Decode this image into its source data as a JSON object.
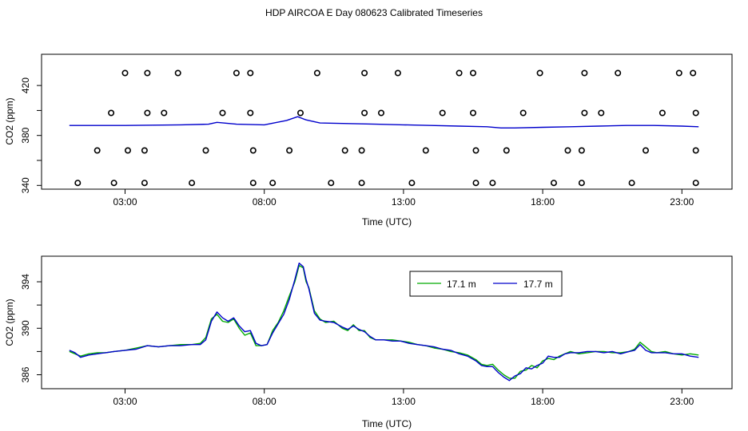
{
  "title": "HDP AIRCOA E  Day 080623  Calibrated Timeseries",
  "colors": {
    "green": "#00aa00",
    "blue": "#0000cc",
    "frame": "#000000"
  },
  "chart_data": [
    {
      "type": "line",
      "xlabel": "Time (UTC)",
      "ylabel": "CO2 (ppm)",
      "xlim": [
        0.0,
        24.8
      ],
      "ylim": [
        337,
        445
      ],
      "x_ticks": [
        {
          "v": 3,
          "label": "03:00"
        },
        {
          "v": 8,
          "label": "08:00"
        },
        {
          "v": 13,
          "label": "13:00"
        },
        {
          "v": 18,
          "label": "18:00"
        },
        {
          "v": 23,
          "label": "23:00"
        }
      ],
      "y_ticks": [
        {
          "v": 340,
          "label": "340"
        },
        {
          "v": 380,
          "label": "380"
        },
        {
          "v": 420,
          "label": "420"
        }
      ],
      "extra_y_ticks": [
        360,
        400
      ],
      "series": [
        {
          "color": "blue",
          "x": [
            1.0,
            3.0,
            5.0,
            6.0,
            6.3,
            7.0,
            8.0,
            8.8,
            9.2,
            9.5,
            10.0,
            11.0,
            12.0,
            13.0,
            14.0,
            15.0,
            16.0,
            16.5,
            17.0,
            18.0,
            19.0,
            20.0,
            21.0,
            22.0,
            23.0,
            23.6
          ],
          "y": [
            388,
            388,
            388.5,
            389,
            390.5,
            389,
            388.5,
            392,
            395,
            392.5,
            390,
            389.5,
            389,
            388.5,
            388,
            387.5,
            387,
            386,
            386,
            386.5,
            387,
            387.5,
            388,
            388,
            387.5,
            387
          ]
        }
      ],
      "points": [
        {
          "x": 1.3,
          "y": 342
        },
        {
          "x": 2.0,
          "y": 368
        },
        {
          "x": 2.5,
          "y": 398
        },
        {
          "x": 3.0,
          "y": 430
        },
        {
          "x": 2.6,
          "y": 342
        },
        {
          "x": 3.1,
          "y": 368
        },
        {
          "x": 3.7,
          "y": 368
        },
        {
          "x": 3.7,
          "y": 342
        },
        {
          "x": 3.8,
          "y": 398
        },
        {
          "x": 3.8,
          "y": 430
        },
        {
          "x": 4.4,
          "y": 398
        },
        {
          "x": 4.9,
          "y": 430
        },
        {
          "x": 5.4,
          "y": 342
        },
        {
          "x": 5.9,
          "y": 368
        },
        {
          "x": 6.5,
          "y": 398
        },
        {
          "x": 7.0,
          "y": 430
        },
        {
          "x": 7.5,
          "y": 430
        },
        {
          "x": 7.5,
          "y": 398
        },
        {
          "x": 7.6,
          "y": 368
        },
        {
          "x": 7.6,
          "y": 342
        },
        {
          "x": 8.3,
          "y": 342
        },
        {
          "x": 8.9,
          "y": 368
        },
        {
          "x": 9.3,
          "y": 398
        },
        {
          "x": 9.9,
          "y": 430
        },
        {
          "x": 10.4,
          "y": 342
        },
        {
          "x": 10.9,
          "y": 368
        },
        {
          "x": 11.5,
          "y": 368
        },
        {
          "x": 11.5,
          "y": 342
        },
        {
          "x": 11.6,
          "y": 398
        },
        {
          "x": 11.6,
          "y": 430
        },
        {
          "x": 12.2,
          "y": 398
        },
        {
          "x": 12.8,
          "y": 430
        },
        {
          "x": 13.3,
          "y": 342
        },
        {
          "x": 13.8,
          "y": 368
        },
        {
          "x": 14.4,
          "y": 398
        },
        {
          "x": 15.0,
          "y": 430
        },
        {
          "x": 15.5,
          "y": 430
        },
        {
          "x": 15.5,
          "y": 398
        },
        {
          "x": 15.6,
          "y": 368
        },
        {
          "x": 15.6,
          "y": 342
        },
        {
          "x": 16.2,
          "y": 342
        },
        {
          "x": 16.7,
          "y": 368
        },
        {
          "x": 17.3,
          "y": 398
        },
        {
          "x": 17.9,
          "y": 430
        },
        {
          "x": 18.4,
          "y": 342
        },
        {
          "x": 18.9,
          "y": 368
        },
        {
          "x": 19.4,
          "y": 368
        },
        {
          "x": 19.4,
          "y": 342
        },
        {
          "x": 19.5,
          "y": 398
        },
        {
          "x": 19.5,
          "y": 430
        },
        {
          "x": 20.1,
          "y": 398
        },
        {
          "x": 20.7,
          "y": 430
        },
        {
          "x": 21.2,
          "y": 342
        },
        {
          "x": 21.7,
          "y": 368
        },
        {
          "x": 22.3,
          "y": 398
        },
        {
          "x": 22.9,
          "y": 430
        },
        {
          "x": 23.4,
          "y": 430
        },
        {
          "x": 23.5,
          "y": 398
        },
        {
          "x": 23.5,
          "y": 368
        },
        {
          "x": 23.5,
          "y": 342
        }
      ]
    },
    {
      "type": "line",
      "xlabel": "Time (UTC)",
      "ylabel": "CO2 (ppm)",
      "xlim": [
        0.0,
        24.8
      ],
      "ylim": [
        384.8,
        396.2
      ],
      "x_ticks": [
        {
          "v": 3,
          "label": "03:00"
        },
        {
          "v": 8,
          "label": "08:00"
        },
        {
          "v": 13,
          "label": "13:00"
        },
        {
          "v": 18,
          "label": "18:00"
        },
        {
          "v": 23,
          "label": "23:00"
        }
      ],
      "y_ticks": [
        {
          "v": 386,
          "label": "386"
        },
        {
          "v": 390,
          "label": "390"
        },
        {
          "v": 394,
          "label": "394"
        }
      ],
      "extra_y_ticks": [
        388,
        392
      ],
      "legend": {
        "placement": "top-right",
        "entries": [
          {
            "label": "17.1 m",
            "color": "green"
          },
          {
            "label": "17.7 m",
            "color": "blue"
          }
        ]
      },
      "series": [
        {
          "name": "17.1 m",
          "color": "green",
          "x": [
            1.0,
            1.2,
            1.4,
            1.7,
            2.0,
            2.3,
            2.6,
            3.0,
            3.4,
            3.8,
            4.2,
            4.6,
            5.0,
            5.4,
            5.7,
            5.9,
            6.1,
            6.3,
            6.5,
            6.7,
            6.9,
            7.1,
            7.3,
            7.5,
            7.7,
            7.9,
            8.1,
            8.3,
            8.5,
            8.7,
            8.9,
            9.1,
            9.25,
            9.4,
            9.5,
            9.6,
            9.8,
            10.0,
            10.2,
            10.5,
            10.8,
            11.0,
            11.2,
            11.4,
            11.6,
            11.8,
            12.0,
            12.3,
            12.6,
            12.9,
            13.2,
            13.5,
            13.8,
            14.1,
            14.4,
            14.7,
            15.0,
            15.3,
            15.6,
            15.8,
            16.0,
            16.2,
            16.4,
            16.6,
            16.8,
            17.0,
            17.2,
            17.4,
            17.6,
            17.8,
            18.0,
            18.2,
            18.4,
            18.6,
            18.8,
            19.0,
            19.3,
            19.6,
            19.9,
            20.2,
            20.5,
            20.8,
            21.1,
            21.3,
            21.5,
            21.7,
            21.9,
            22.1,
            22.4,
            22.7,
            23.0,
            23.3,
            23.6
          ],
          "y": [
            388.0,
            387.8,
            387.6,
            387.8,
            387.9,
            387.9,
            388.0,
            388.1,
            388.3,
            388.5,
            388.4,
            388.5,
            388.6,
            388.6,
            388.7,
            389.2,
            390.8,
            391.2,
            390.6,
            390.5,
            390.8,
            390.0,
            389.4,
            389.6,
            388.5,
            388.5,
            388.6,
            389.8,
            390.5,
            391.5,
            392.8,
            394.0,
            395.4,
            395.2,
            394.0,
            393.5,
            391.5,
            390.8,
            390.5,
            390.6,
            390.0,
            389.8,
            390.3,
            389.8,
            389.8,
            389.2,
            389.0,
            389.0,
            389.0,
            388.9,
            388.8,
            388.6,
            388.5,
            388.3,
            388.2,
            388.0,
            387.9,
            387.7,
            387.3,
            386.9,
            386.8,
            386.9,
            386.4,
            386.0,
            385.7,
            385.7,
            386.3,
            386.4,
            386.8,
            386.6,
            387.2,
            387.4,
            387.3,
            387.6,
            387.8,
            388.0,
            387.8,
            387.9,
            388.0,
            388.0,
            387.9,
            387.9,
            388.0,
            388.2,
            388.8,
            388.4,
            388.0,
            387.9,
            388.0,
            387.8,
            387.7,
            387.8,
            387.7
          ]
        },
        {
          "name": "17.7 m",
          "color": "blue",
          "x": [
            1.0,
            1.2,
            1.4,
            1.7,
            2.0,
            2.3,
            2.6,
            3.0,
            3.4,
            3.8,
            4.2,
            4.6,
            5.0,
            5.4,
            5.7,
            5.9,
            6.1,
            6.3,
            6.5,
            6.7,
            6.9,
            7.1,
            7.3,
            7.5,
            7.7,
            7.9,
            8.1,
            8.3,
            8.5,
            8.7,
            8.9,
            9.1,
            9.25,
            9.4,
            9.5,
            9.6,
            9.8,
            10.0,
            10.2,
            10.5,
            10.8,
            11.0,
            11.2,
            11.4,
            11.6,
            11.8,
            12.0,
            12.3,
            12.6,
            12.9,
            13.2,
            13.5,
            13.8,
            14.1,
            14.4,
            14.7,
            15.0,
            15.3,
            15.6,
            15.8,
            16.0,
            16.2,
            16.4,
            16.6,
            16.8,
            17.0,
            17.2,
            17.4,
            17.6,
            17.8,
            18.0,
            18.2,
            18.4,
            18.6,
            18.8,
            19.0,
            19.3,
            19.6,
            19.9,
            20.2,
            20.5,
            20.8,
            21.1,
            21.3,
            21.5,
            21.7,
            21.9,
            22.1,
            22.4,
            22.7,
            23.0,
            23.3,
            23.6
          ],
          "y": [
            388.1,
            387.9,
            387.5,
            387.7,
            387.8,
            387.9,
            388.0,
            388.1,
            388.2,
            388.5,
            388.4,
            388.5,
            388.5,
            388.6,
            388.6,
            389.0,
            390.6,
            391.4,
            390.9,
            390.6,
            390.9,
            390.2,
            389.7,
            389.8,
            388.7,
            388.5,
            388.6,
            389.6,
            390.4,
            391.2,
            392.5,
            394.2,
            395.6,
            395.3,
            394.2,
            393.4,
            391.3,
            390.7,
            390.6,
            390.5,
            390.1,
            389.9,
            390.2,
            389.9,
            389.7,
            389.3,
            389.0,
            389.0,
            388.9,
            388.9,
            388.7,
            388.6,
            388.5,
            388.4,
            388.2,
            388.1,
            387.8,
            387.6,
            387.2,
            386.8,
            386.7,
            386.7,
            386.2,
            385.8,
            385.5,
            385.9,
            386.1,
            386.6,
            386.5,
            386.8,
            387.0,
            387.6,
            387.5,
            387.5,
            387.8,
            387.9,
            387.9,
            388.0,
            388.0,
            387.9,
            388.0,
            387.8,
            388.0,
            388.1,
            388.6,
            388.1,
            387.9,
            387.9,
            387.9,
            387.8,
            387.8,
            387.6,
            387.5
          ]
        }
      ]
    }
  ]
}
